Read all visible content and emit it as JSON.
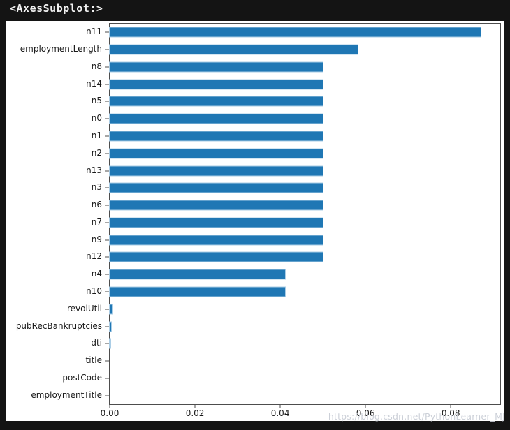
{
  "console": {
    "repr_text": "<AxesSubplot:>"
  },
  "watermark": {
    "text": "https://blog.csdn.net/PythonLearner_MJ"
  },
  "colors": {
    "page_bg": "#141414",
    "figure_bg": "#ffffff",
    "bar": "#1f77b4",
    "bar_halo": "#aacde6",
    "spine": "#4d4d4d",
    "text": "#1a1a1a",
    "console_text": "#f0f0f0",
    "watermark": "#ccd0d8"
  },
  "chart_data": {
    "type": "bar",
    "orientation": "horizontal",
    "title": "",
    "xlabel": "",
    "ylabel": "",
    "categories": [
      "n11",
      "employmentLength",
      "n8",
      "n14",
      "n5",
      "n0",
      "n1",
      "n2",
      "n13",
      "n3",
      "n6",
      "n7",
      "n9",
      "n12",
      "n4",
      "n10",
      "revolUtil",
      "pubRecBankruptcies",
      "dti",
      "title",
      "postCode",
      "employmentTitle"
    ],
    "values": [
      0.087,
      0.0582,
      0.05,
      0.05,
      0.05,
      0.05,
      0.05,
      0.05,
      0.05,
      0.05,
      0.05,
      0.05,
      0.05,
      0.05,
      0.0412,
      0.0412,
      0.0006,
      0.0004,
      0.0002,
      0.0,
      0.0,
      0.0
    ],
    "xlim": [
      0,
      0.0916
    ],
    "x_ticks": [
      0.0,
      0.02,
      0.04,
      0.06,
      0.08
    ],
    "x_tick_labels": [
      "0.00",
      "0.02",
      "0.04",
      "0.06",
      "0.08"
    ],
    "grid": false,
    "legend": null,
    "bar_color": "#1f77b4"
  }
}
